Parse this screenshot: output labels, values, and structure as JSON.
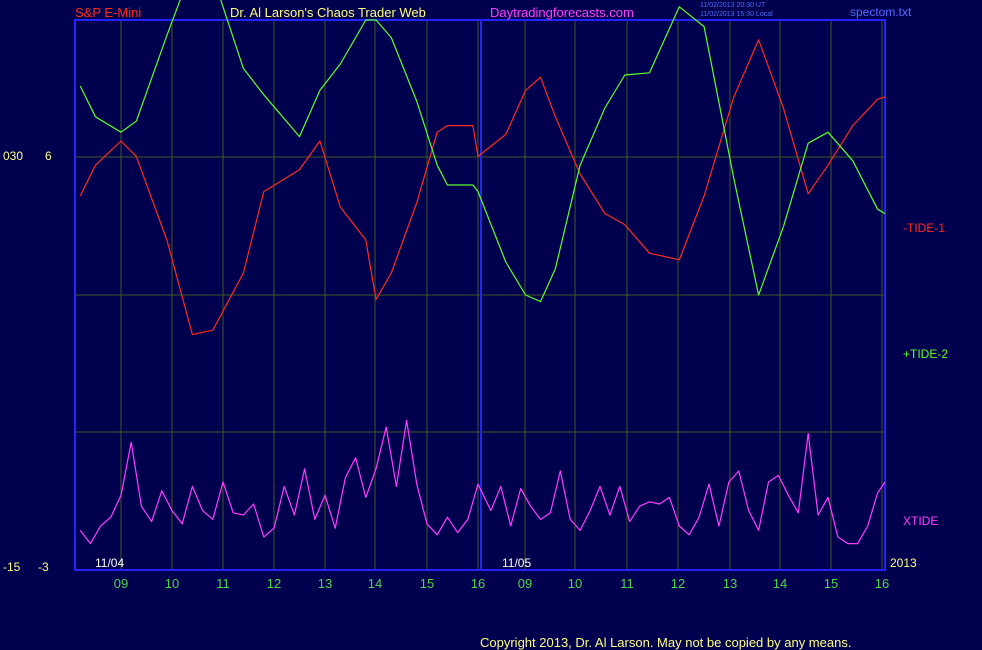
{
  "header": {
    "left": "S&P E-Mini",
    "center": "Dr. Al Larson's Chaos Trader Web",
    "site": "Daytradingforecasts.com",
    "right": "spectom.txt",
    "timestamp_utc": "11/02/2013 20:30 UT",
    "timestamp_local": "11/02/2013 15:30 Local"
  },
  "footer": {
    "copyright": "Copyright 2013, Dr. Al Larson. May not be copied by any means."
  },
  "colors": {
    "background": "#00004e",
    "frame": "#2323ff",
    "grid": "#405a20",
    "tide1": "#ff2a1a",
    "tide2": "#5cff2a",
    "xtide": "#ff3cff",
    "hour_labels": "#4cd64c",
    "axis_text": "#ffff80"
  },
  "chart_data": {
    "type": "line",
    "title": "S&P E-Mini",
    "days": [
      "11/04",
      "11/05"
    ],
    "year_label": "2013",
    "x_tick_labels": [
      "09",
      "10",
      "11",
      "12",
      "13",
      "14",
      "15",
      "16",
      "09",
      "10",
      "11",
      "12",
      "13",
      "14",
      "15",
      "16"
    ],
    "y_left_labels": {
      "top": [
        "030",
        "6"
      ],
      "bottom": [
        "-15",
        "-3"
      ]
    },
    "grid": true,
    "x_range_hours": [
      8.2,
      24.15
    ],
    "series": [
      {
        "name": "-TIDE-1",
        "color": "#ff2a1a",
        "x": [
          8.2,
          8.5,
          9.0,
          9.3,
          9.9,
          10.4,
          10.8,
          11.4,
          11.8,
          12.5,
          12.9,
          13.3,
          13.8,
          14.0,
          14.3,
          14.8,
          15.2,
          15.4,
          15.9,
          16.0,
          16.5,
          16.9,
          17.2,
          17.5,
          18.0,
          18.5,
          18.9,
          19.4,
          20.0,
          20.5,
          21.1,
          21.6,
          22.1,
          22.6,
          23.0,
          23.5,
          24.0,
          24.15
        ],
        "y": [
          2.0,
          3.4,
          4.5,
          3.8,
          0.0,
          -4.3,
          -4.1,
          -1.5,
          2.2,
          3.2,
          4.5,
          1.5,
          0.0,
          -2.7,
          -1.5,
          1.7,
          4.9,
          5.2,
          5.2,
          3.8,
          4.8,
          6.8,
          7.4,
          5.6,
          3.0,
          1.2,
          0.7,
          -0.6,
          -0.9,
          2.0,
          6.5,
          9.1,
          6.0,
          2.1,
          3.4,
          5.2,
          6.4,
          6.5
        ],
        "label": "-TIDE-1"
      },
      {
        "name": "+TIDE-2",
        "color": "#5cff2a",
        "x": [
          8.2,
          8.5,
          9.0,
          9.3,
          9.9,
          10.4,
          10.8,
          11.4,
          11.8,
          12.5,
          12.9,
          13.3,
          13.8,
          14.0,
          14.3,
          14.8,
          15.2,
          15.4,
          15.9,
          16.0,
          16.5,
          16.9,
          17.2,
          17.5,
          18.0,
          18.5,
          18.9,
          19.4,
          20.0,
          20.5,
          21.1,
          21.6,
          22.1,
          22.6,
          23.0,
          23.5,
          24.0,
          24.15
        ],
        "y": [
          7.0,
          5.6,
          4.9,
          5.4,
          9.3,
          12.4,
          12.0,
          7.8,
          6.6,
          4.7,
          6.8,
          8.0,
          10.0,
          10.0,
          9.2,
          6.3,
          3.4,
          2.5,
          2.5,
          2.2,
          -1.0,
          -2.5,
          -2.8,
          -1.3,
          3.4,
          6.0,
          7.5,
          7.6,
          10.6,
          9.7,
          2.8,
          -2.5,
          0.6,
          4.4,
          4.9,
          3.6,
          1.4,
          1.2
        ],
        "label": "+TIDE-2"
      },
      {
        "name": "XTIDE",
        "color": "#ff3cff",
        "x": [
          8.2,
          8.4,
          8.6,
          8.8,
          9.0,
          9.2,
          9.4,
          9.6,
          9.8,
          10.0,
          10.2,
          10.4,
          10.6,
          10.8,
          11.0,
          11.2,
          11.4,
          11.6,
          11.8,
          12.0,
          12.2,
          12.4,
          12.6,
          12.8,
          13.0,
          13.2,
          13.4,
          13.6,
          13.8,
          14.0,
          14.2,
          14.4,
          14.6,
          14.8,
          15.0,
          15.2,
          15.4,
          15.6,
          15.8,
          16.0,
          16.2,
          16.4,
          16.6,
          16.8,
          17.0,
          17.2,
          17.4,
          17.6,
          17.8,
          18.0,
          18.2,
          18.4,
          18.6,
          18.8,
          19.0,
          19.2,
          19.4,
          19.6,
          19.8,
          20.0,
          20.2,
          20.4,
          20.6,
          20.8,
          21.0,
          21.2,
          21.4,
          21.6,
          21.8,
          22.0,
          22.2,
          22.4,
          22.6,
          22.8,
          23.0,
          23.2,
          23.4,
          23.6,
          23.8,
          24.0,
          24.15
        ],
        "y": [
          -13.2,
          -13.8,
          -13.0,
          -12.6,
          -11.6,
          -9.2,
          -12.1,
          -12.8,
          -11.4,
          -12.3,
          -12.9,
          -11.2,
          -12.3,
          -12.7,
          -11.0,
          -12.4,
          -12.5,
          -12.0,
          -13.5,
          -13.1,
          -11.2,
          -12.5,
          -10.4,
          -12.7,
          -11.6,
          -13.1,
          -10.8,
          -9.9,
          -11.7,
          -10.4,
          -8.5,
          -11.2,
          -8.2,
          -11.1,
          -12.9,
          -13.4,
          -12.6,
          -13.3,
          -12.7,
          -11.1,
          -12.3,
          -11.2,
          -13.0,
          -11.3,
          -12.1,
          -12.7,
          -12.4,
          -10.5,
          -12.7,
          -13.2,
          -12.3,
          -11.2,
          -12.5,
          -11.2,
          -12.8,
          -12.1,
          -11.9,
          -12.0,
          -11.7,
          -13.0,
          -13.4,
          -12.6,
          -11.1,
          -13.0,
          -11.0,
          -10.5,
          -12.3,
          -13.2,
          -11.0,
          -10.7,
          -11.6,
          -12.4,
          -8.8,
          -12.5,
          -11.7,
          -13.5,
          -13.8,
          -13.8,
          -13.0,
          -11.5,
          -11.0
        ],
        "label": "XTIDE"
      }
    ]
  }
}
